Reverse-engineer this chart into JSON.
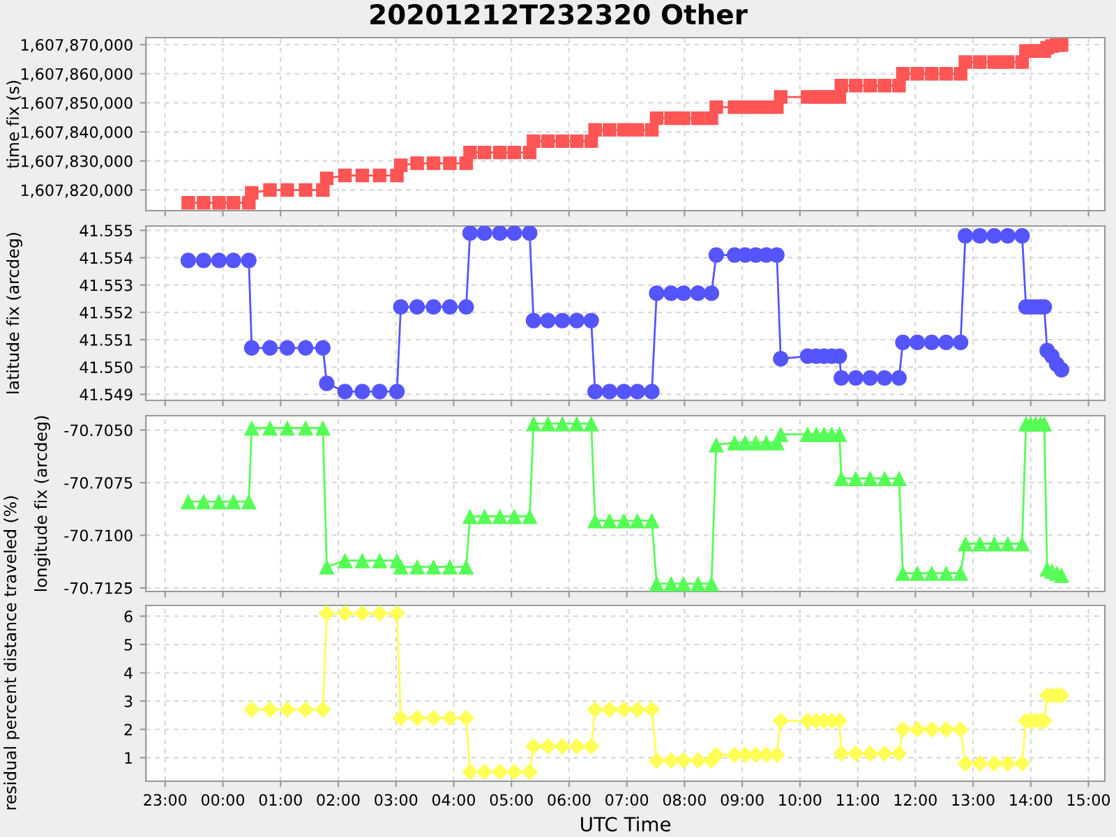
{
  "chart_data": [
    {
      "type": "line",
      "title": "20201212T232320 Other",
      "ylabel": "time fix (s)",
      "marker": "square",
      "grid": true,
      "tick_labels": "y",
      "x": [
        "2020-12-12T23:24",
        "2020-12-12T23:40",
        "2020-12-12T23:56",
        "2020-12-13T00:11",
        "2020-12-13T00:27",
        "2020-12-13T00:30",
        "2020-12-13T00:49",
        "2020-12-13T01:07",
        "2020-12-13T01:26",
        "2020-12-13T01:44",
        "2020-12-13T01:48",
        "2020-12-13T02:07",
        "2020-12-13T02:25",
        "2020-12-13T02:43",
        "2020-12-13T03:01",
        "2020-12-13T03:05",
        "2020-12-13T03:22",
        "2020-12-13T03:39",
        "2020-12-13T03:56",
        "2020-12-13T04:13",
        "2020-12-13T04:17",
        "2020-12-13T04:32",
        "2020-12-13T04:48",
        "2020-12-13T05:03",
        "2020-12-13T05:19",
        "2020-12-13T05:23",
        "2020-12-13T05:38",
        "2020-12-13T05:53",
        "2020-12-13T06:08",
        "2020-12-13T06:23",
        "2020-12-13T06:27",
        "2020-12-13T06:42",
        "2020-12-13T06:57",
        "2020-12-13T07:11",
        "2020-12-13T07:26",
        "2020-12-13T07:31",
        "2020-12-13T07:46",
        "2020-12-13T07:59",
        "2020-12-13T08:14",
        "2020-12-13T08:28",
        "2020-12-13T08:33",
        "2020-12-13T08:52",
        "2020-12-13T09:03",
        "2020-12-13T09:14",
        "2020-12-13T09:25",
        "2020-12-13T09:36",
        "2020-12-13T09:40",
        "2020-12-13T10:08",
        "2020-12-13T10:17",
        "2020-12-13T10:25",
        "2020-12-13T10:33",
        "2020-12-13T10:41",
        "2020-12-13T10:43",
        "2020-12-13T10:58",
        "2020-12-13T11:13",
        "2020-12-13T11:28",
        "2020-12-13T11:43",
        "2020-12-13T11:47",
        "2020-12-13T12:02",
        "2020-12-13T12:17",
        "2020-12-13T12:32",
        "2020-12-13T12:47",
        "2020-12-13T12:52",
        "2020-12-13T13:07",
        "2020-12-13T13:22",
        "2020-12-13T13:36",
        "2020-12-13T13:51",
        "2020-12-13T13:55",
        "2020-12-13T14:00",
        "2020-12-13T14:05",
        "2020-12-13T14:10",
        "2020-12-13T14:14",
        "2020-12-13T14:17",
        "2020-12-13T14:22",
        "2020-12-13T14:27",
        "2020-12-13T14:32"
      ],
      "series": [
        {
          "color": "#ff5555",
          "values": [
            1607815600,
            1607815600,
            1607815600,
            1607815600,
            1607815600,
            1607819000,
            1607820000,
            1607820000,
            1607820000,
            1607820000,
            1607824000,
            1607825000,
            1607825000,
            1607825000,
            1607825000,
            1607828500,
            1607829200,
            1607829200,
            1607829200,
            1607829200,
            1607832900,
            1607832900,
            1607832900,
            1607832900,
            1607832900,
            1607836800,
            1607836800,
            1607836800,
            1607836800,
            1607836800,
            1607840700,
            1607840700,
            1607840700,
            1607840700,
            1607840700,
            1607844700,
            1607844700,
            1607844700,
            1607844700,
            1607844700,
            1607848500,
            1607848500,
            1607848500,
            1607848500,
            1607848500,
            1607848500,
            1607852000,
            1607852000,
            1607852000,
            1607852000,
            1607852000,
            1607852000,
            1607855900,
            1607855900,
            1607855900,
            1607855900,
            1607855900,
            1607860000,
            1607860000,
            1607860000,
            1607860000,
            1607860000,
            1607864000,
            1607864000,
            1607864000,
            1607864000,
            1607864000,
            1607867800,
            1607867800,
            1607867800,
            1607867800,
            1607867800,
            1607868900,
            1607869500,
            1607869800,
            1607869900
          ]
        }
      ],
      "xlim": [
        "2020-12-12T22:40",
        "2020-12-13T15:17"
      ],
      "xticks": [
        {
          "value": "2020-12-12T23:00",
          "label": null
        },
        {
          "value": "2020-12-13T00:00",
          "label": null
        },
        {
          "value": "2020-12-13T01:00",
          "label": null
        },
        {
          "value": "2020-12-13T02:00",
          "label": null
        },
        {
          "value": "2020-12-13T03:00",
          "label": null
        },
        {
          "value": "2020-12-13T04:00",
          "label": null
        },
        {
          "value": "2020-12-13T05:00",
          "label": null
        },
        {
          "value": "2020-12-13T06:00",
          "label": null
        },
        {
          "value": "2020-12-13T07:00",
          "label": null
        },
        {
          "value": "2020-12-13T08:00",
          "label": null
        },
        {
          "value": "2020-12-13T09:00",
          "label": null
        },
        {
          "value": "2020-12-13T10:00",
          "label": null
        },
        {
          "value": "2020-12-13T11:00",
          "label": null
        },
        {
          "value": "2020-12-13T12:00",
          "label": null
        },
        {
          "value": "2020-12-13T13:00",
          "label": null
        },
        {
          "value": "2020-12-13T14:00",
          "label": null
        },
        {
          "value": "2020-12-13T15:00",
          "label": null
        }
      ],
      "ylim": [
        1607812900,
        1607872400
      ],
      "yticks": [
        {
          "value": 1607820000,
          "label": "1,607,820,000"
        },
        {
          "value": 1607830000,
          "label": "1,607,830,000"
        },
        {
          "value": 1607840000,
          "label": "1,607,840,000"
        },
        {
          "value": 1607850000,
          "label": "1,607,850,000"
        },
        {
          "value": 1607860000,
          "label": "1,607,860,000"
        },
        {
          "value": 1607870000,
          "label": "1,607,870,000"
        }
      ]
    },
    {
      "type": "line",
      "ylabel": "latitude fix (arcdeg)",
      "marker": "circle",
      "grid": true,
      "tick_labels": "y",
      "x": [
        "2020-12-12T23:24",
        "2020-12-12T23:40",
        "2020-12-12T23:56",
        "2020-12-13T00:11",
        "2020-12-13T00:27",
        "2020-12-13T00:30",
        "2020-12-13T00:49",
        "2020-12-13T01:07",
        "2020-12-13T01:26",
        "2020-12-13T01:44",
        "2020-12-13T01:48",
        "2020-12-13T02:07",
        "2020-12-13T02:25",
        "2020-12-13T02:43",
        "2020-12-13T03:01",
        "2020-12-13T03:05",
        "2020-12-13T03:22",
        "2020-12-13T03:39",
        "2020-12-13T03:56",
        "2020-12-13T04:13",
        "2020-12-13T04:17",
        "2020-12-13T04:32",
        "2020-12-13T04:48",
        "2020-12-13T05:03",
        "2020-12-13T05:19",
        "2020-12-13T05:23",
        "2020-12-13T05:38",
        "2020-12-13T05:53",
        "2020-12-13T06:08",
        "2020-12-13T06:23",
        "2020-12-13T06:27",
        "2020-12-13T06:42",
        "2020-12-13T06:57",
        "2020-12-13T07:11",
        "2020-12-13T07:26",
        "2020-12-13T07:31",
        "2020-12-13T07:46",
        "2020-12-13T07:59",
        "2020-12-13T08:14",
        "2020-12-13T08:28",
        "2020-12-13T08:33",
        "2020-12-13T08:52",
        "2020-12-13T09:03",
        "2020-12-13T09:14",
        "2020-12-13T09:25",
        "2020-12-13T09:36",
        "2020-12-13T09:40",
        "2020-12-13T10:08",
        "2020-12-13T10:17",
        "2020-12-13T10:25",
        "2020-12-13T10:33",
        "2020-12-13T10:41",
        "2020-12-13T10:43",
        "2020-12-13T10:58",
        "2020-12-13T11:13",
        "2020-12-13T11:28",
        "2020-12-13T11:43",
        "2020-12-13T11:47",
        "2020-12-13T12:02",
        "2020-12-13T12:17",
        "2020-12-13T12:32",
        "2020-12-13T12:47",
        "2020-12-13T12:52",
        "2020-12-13T13:07",
        "2020-12-13T13:22",
        "2020-12-13T13:36",
        "2020-12-13T13:51",
        "2020-12-13T13:55",
        "2020-12-13T14:00",
        "2020-12-13T14:05",
        "2020-12-13T14:10",
        "2020-12-13T14:14",
        "2020-12-13T14:17",
        "2020-12-13T14:22",
        "2020-12-13T14:27",
        "2020-12-13T14:32"
      ],
      "series": [
        {
          "color": "#5555ff",
          "values": [
            41.5539,
            41.5539,
            41.5539,
            41.5539,
            41.5539,
            41.5507,
            41.5507,
            41.5507,
            41.5507,
            41.5507,
            41.5494,
            41.5491,
            41.5491,
            41.5491,
            41.5491,
            41.5522,
            41.5522,
            41.5522,
            41.5522,
            41.5522,
            41.5549,
            41.5549,
            41.5549,
            41.5549,
            41.5549,
            41.5517,
            41.5517,
            41.5517,
            41.5517,
            41.5517,
            41.5491,
            41.5491,
            41.5491,
            41.5491,
            41.5491,
            41.5527,
            41.5527,
            41.5527,
            41.5527,
            41.5527,
            41.5541,
            41.5541,
            41.5541,
            41.5541,
            41.5541,
            41.5541,
            41.5503,
            41.5504,
            41.5504,
            41.5504,
            41.5504,
            41.5504,
            41.5496,
            41.5496,
            41.5496,
            41.5496,
            41.5496,
            41.5509,
            41.5509,
            41.5509,
            41.5509,
            41.5509,
            41.5548,
            41.5548,
            41.5548,
            41.5548,
            41.5548,
            41.5522,
            41.5522,
            41.5522,
            41.5522,
            41.5522,
            41.5506,
            41.5504,
            41.5501,
            41.5499
          ]
        }
      ],
      "xlim": [
        "2020-12-12T22:40",
        "2020-12-13T15:17"
      ],
      "xticks": [
        {
          "value": "2020-12-12T23:00",
          "label": null
        },
        {
          "value": "2020-12-13T00:00",
          "label": null
        },
        {
          "value": "2020-12-13T01:00",
          "label": null
        },
        {
          "value": "2020-12-13T02:00",
          "label": null
        },
        {
          "value": "2020-12-13T03:00",
          "label": null
        },
        {
          "value": "2020-12-13T04:00",
          "label": null
        },
        {
          "value": "2020-12-13T05:00",
          "label": null
        },
        {
          "value": "2020-12-13T06:00",
          "label": null
        },
        {
          "value": "2020-12-13T07:00",
          "label": null
        },
        {
          "value": "2020-12-13T08:00",
          "label": null
        },
        {
          "value": "2020-12-13T09:00",
          "label": null
        },
        {
          "value": "2020-12-13T10:00",
          "label": null
        },
        {
          "value": "2020-12-13T11:00",
          "label": null
        },
        {
          "value": "2020-12-13T12:00",
          "label": null
        },
        {
          "value": "2020-12-13T13:00",
          "label": null
        },
        {
          "value": "2020-12-13T14:00",
          "label": null
        },
        {
          "value": "2020-12-13T15:00",
          "label": null
        }
      ],
      "ylim": [
        41.54878,
        41.55516
      ],
      "yticks": [
        {
          "value": 41.549,
          "label": "41.549"
        },
        {
          "value": 41.55,
          "label": "41.550"
        },
        {
          "value": 41.551,
          "label": "41.551"
        },
        {
          "value": 41.552,
          "label": "41.552"
        },
        {
          "value": 41.553,
          "label": "41.553"
        },
        {
          "value": 41.554,
          "label": "41.554"
        },
        {
          "value": 41.555,
          "label": "41.555"
        }
      ]
    },
    {
      "type": "line",
      "ylabel": "longitude fix (arcdeg)",
      "marker": "triangle",
      "grid": true,
      "tick_labels": "y",
      "x": [
        "2020-12-12T23:24",
        "2020-12-12T23:40",
        "2020-12-12T23:56",
        "2020-12-13T00:11",
        "2020-12-13T00:27",
        "2020-12-13T00:30",
        "2020-12-13T00:49",
        "2020-12-13T01:07",
        "2020-12-13T01:26",
        "2020-12-13T01:44",
        "2020-12-13T01:48",
        "2020-12-13T02:07",
        "2020-12-13T02:25",
        "2020-12-13T02:43",
        "2020-12-13T03:01",
        "2020-12-13T03:05",
        "2020-12-13T03:22",
        "2020-12-13T03:39",
        "2020-12-13T03:56",
        "2020-12-13T04:13",
        "2020-12-13T04:17",
        "2020-12-13T04:32",
        "2020-12-13T04:48",
        "2020-12-13T05:03",
        "2020-12-13T05:19",
        "2020-12-13T05:23",
        "2020-12-13T05:38",
        "2020-12-13T05:53",
        "2020-12-13T06:08",
        "2020-12-13T06:23",
        "2020-12-13T06:27",
        "2020-12-13T06:42",
        "2020-12-13T06:57",
        "2020-12-13T07:11",
        "2020-12-13T07:26",
        "2020-12-13T07:31",
        "2020-12-13T07:46",
        "2020-12-13T07:59",
        "2020-12-13T08:14",
        "2020-12-13T08:28",
        "2020-12-13T08:33",
        "2020-12-13T08:52",
        "2020-12-13T09:03",
        "2020-12-13T09:14",
        "2020-12-13T09:25",
        "2020-12-13T09:36",
        "2020-12-13T09:40",
        "2020-12-13T10:08",
        "2020-12-13T10:17",
        "2020-12-13T10:25",
        "2020-12-13T10:33",
        "2020-12-13T10:41",
        "2020-12-13T10:43",
        "2020-12-13T10:58",
        "2020-12-13T11:13",
        "2020-12-13T11:28",
        "2020-12-13T11:43",
        "2020-12-13T11:47",
        "2020-12-13T12:02",
        "2020-12-13T12:17",
        "2020-12-13T12:32",
        "2020-12-13T12:47",
        "2020-12-13T12:52",
        "2020-12-13T13:07",
        "2020-12-13T13:22",
        "2020-12-13T13:36",
        "2020-12-13T13:51",
        "2020-12-13T13:55",
        "2020-12-13T14:00",
        "2020-12-13T14:05",
        "2020-12-13T14:10",
        "2020-12-13T14:14",
        "2020-12-13T14:17",
        "2020-12-13T14:22",
        "2020-12-13T14:27",
        "2020-12-13T14:32"
      ],
      "series": [
        {
          "color": "#55ff55",
          "values": [
            -70.7084,
            -70.7084,
            -70.7084,
            -70.7084,
            -70.7084,
            -70.7049,
            -70.7049,
            -70.7049,
            -70.7049,
            -70.7049,
            -70.7115,
            -70.7112,
            -70.7112,
            -70.7112,
            -70.7112,
            -70.7115,
            -70.7115,
            -70.7115,
            -70.7115,
            -70.7115,
            -70.7091,
            -70.7091,
            -70.7091,
            -70.7091,
            -70.7091,
            -70.7047,
            -70.7047,
            -70.7047,
            -70.7047,
            -70.7047,
            -70.7093,
            -70.7093,
            -70.7093,
            -70.7093,
            -70.7093,
            -70.7123,
            -70.7123,
            -70.7123,
            -70.7123,
            -70.7123,
            -70.7057,
            -70.7056,
            -70.7056,
            -70.7056,
            -70.7056,
            -70.7056,
            -70.7052,
            -70.7052,
            -70.7052,
            -70.7052,
            -70.7052,
            -70.7052,
            -70.7073,
            -70.7073,
            -70.7073,
            -70.7073,
            -70.7073,
            -70.7118,
            -70.7118,
            -70.7118,
            -70.7118,
            -70.7118,
            -70.7104,
            -70.7104,
            -70.7104,
            -70.7104,
            -70.7104,
            -70.7047,
            -70.7047,
            -70.7047,
            -70.7047,
            -70.7047,
            -70.7116,
            -70.7117,
            -70.7118,
            -70.7119
          ]
        }
      ],
      "xlim": [
        "2020-12-12T22:40",
        "2020-12-13T15:17"
      ],
      "xticks": [
        {
          "value": "2020-12-12T23:00",
          "label": null
        },
        {
          "value": "2020-12-13T00:00",
          "label": null
        },
        {
          "value": "2020-12-13T01:00",
          "label": null
        },
        {
          "value": "2020-12-13T02:00",
          "label": null
        },
        {
          "value": "2020-12-13T03:00",
          "label": null
        },
        {
          "value": "2020-12-13T04:00",
          "label": null
        },
        {
          "value": "2020-12-13T05:00",
          "label": null
        },
        {
          "value": "2020-12-13T06:00",
          "label": null
        },
        {
          "value": "2020-12-13T07:00",
          "label": null
        },
        {
          "value": "2020-12-13T08:00",
          "label": null
        },
        {
          "value": "2020-12-13T09:00",
          "label": null
        },
        {
          "value": "2020-12-13T10:00",
          "label": null
        },
        {
          "value": "2020-12-13T11:00",
          "label": null
        },
        {
          "value": "2020-12-13T12:00",
          "label": null
        },
        {
          "value": "2020-12-13T13:00",
          "label": null
        },
        {
          "value": "2020-12-13T14:00",
          "label": null
        },
        {
          "value": "2020-12-13T15:00",
          "label": null
        }
      ],
      "ylim": [
        -70.71267,
        -70.70432
      ],
      "yticks": [
        {
          "value": -70.7125,
          "label": "-70.7125"
        },
        {
          "value": -70.71,
          "label": "-70.7100"
        },
        {
          "value": -70.7075,
          "label": "-70.7075"
        },
        {
          "value": -70.705,
          "label": "-70.7050"
        }
      ]
    },
    {
      "type": "line",
      "ylabel": "residual percent distance traveled (%)",
      "xlabel": "UTC Time",
      "marker": "diamond",
      "grid": true,
      "x": [
        "2020-12-13T00:30",
        "2020-12-13T00:49",
        "2020-12-13T01:07",
        "2020-12-13T01:26",
        "2020-12-13T01:44",
        "2020-12-13T01:48",
        "2020-12-13T02:07",
        "2020-12-13T02:25",
        "2020-12-13T02:43",
        "2020-12-13T03:01",
        "2020-12-13T03:05",
        "2020-12-13T03:22",
        "2020-12-13T03:39",
        "2020-12-13T03:56",
        "2020-12-13T04:13",
        "2020-12-13T04:17",
        "2020-12-13T04:32",
        "2020-12-13T04:48",
        "2020-12-13T05:03",
        "2020-12-13T05:19",
        "2020-12-13T05:23",
        "2020-12-13T05:38",
        "2020-12-13T05:53",
        "2020-12-13T06:08",
        "2020-12-13T06:23",
        "2020-12-13T06:27",
        "2020-12-13T06:42",
        "2020-12-13T06:57",
        "2020-12-13T07:11",
        "2020-12-13T07:26",
        "2020-12-13T07:31",
        "2020-12-13T07:46",
        "2020-12-13T07:59",
        "2020-12-13T08:14",
        "2020-12-13T08:28",
        "2020-12-13T08:33",
        "2020-12-13T08:52",
        "2020-12-13T09:03",
        "2020-12-13T09:14",
        "2020-12-13T09:25",
        "2020-12-13T09:36",
        "2020-12-13T09:40",
        "2020-12-13T10:08",
        "2020-12-13T10:17",
        "2020-12-13T10:25",
        "2020-12-13T10:33",
        "2020-12-13T10:41",
        "2020-12-13T10:43",
        "2020-12-13T10:58",
        "2020-12-13T11:13",
        "2020-12-13T11:28",
        "2020-12-13T11:43",
        "2020-12-13T11:47",
        "2020-12-13T12:02",
        "2020-12-13T12:17",
        "2020-12-13T12:32",
        "2020-12-13T12:47",
        "2020-12-13T12:52",
        "2020-12-13T13:07",
        "2020-12-13T13:22",
        "2020-12-13T13:36",
        "2020-12-13T13:51",
        "2020-12-13T13:55",
        "2020-12-13T14:00",
        "2020-12-13T14:05",
        "2020-12-13T14:10",
        "2020-12-13T14:14",
        "2020-12-13T14:17",
        "2020-12-13T14:22",
        "2020-12-13T14:27",
        "2020-12-13T14:32"
      ],
      "series": [
        {
          "color": "#ffff55",
          "values": [
            2.7,
            2.7,
            2.7,
            2.7,
            2.7,
            6.1,
            6.1,
            6.1,
            6.1,
            6.1,
            2.4,
            2.4,
            2.4,
            2.4,
            2.4,
            0.5,
            0.5,
            0.5,
            0.5,
            0.5,
            1.4,
            1.4,
            1.4,
            1.4,
            1.4,
            2.7,
            2.7,
            2.7,
            2.7,
            2.7,
            0.9,
            0.9,
            0.9,
            0.9,
            0.9,
            1.1,
            1.1,
            1.1,
            1.1,
            1.1,
            1.1,
            2.3,
            2.3,
            2.3,
            2.3,
            2.3,
            2.3,
            1.15,
            1.15,
            1.15,
            1.15,
            1.15,
            2.0,
            2.0,
            2.0,
            2.0,
            2.0,
            0.8,
            0.8,
            0.8,
            0.8,
            0.8,
            2.3,
            2.3,
            2.3,
            2.3,
            2.3,
            3.2,
            3.2,
            3.2,
            3.2
          ]
        }
      ],
      "xlim": [
        "2020-12-12T22:40",
        "2020-12-13T15:17"
      ],
      "xticks": [
        {
          "value": "2020-12-12T23:00",
          "label": "23:00"
        },
        {
          "value": "2020-12-13T00:00",
          "label": "00:00"
        },
        {
          "value": "2020-12-13T01:00",
          "label": "01:00"
        },
        {
          "value": "2020-12-13T02:00",
          "label": "02:00"
        },
        {
          "value": "2020-12-13T03:00",
          "label": "03:00"
        },
        {
          "value": "2020-12-13T04:00",
          "label": "04:00"
        },
        {
          "value": "2020-12-13T05:00",
          "label": "05:00"
        },
        {
          "value": "2020-12-13T06:00",
          "label": "06:00"
        },
        {
          "value": "2020-12-13T07:00",
          "label": "07:00"
        },
        {
          "value": "2020-12-13T08:00",
          "label": "08:00"
        },
        {
          "value": "2020-12-13T09:00",
          "label": "09:00"
        },
        {
          "value": "2020-12-13T10:00",
          "label": "10:00"
        },
        {
          "value": "2020-12-13T11:00",
          "label": "11:00"
        },
        {
          "value": "2020-12-13T12:00",
          "label": "12:00"
        },
        {
          "value": "2020-12-13T13:00",
          "label": "13:00"
        },
        {
          "value": "2020-12-13T14:00",
          "label": "14:00"
        },
        {
          "value": "2020-12-13T15:00",
          "label": "15:00"
        }
      ],
      "ylim": [
        0.17,
        6.38
      ],
      "yticks": [
        1,
        2,
        3,
        4,
        5,
        6
      ]
    }
  ]
}
